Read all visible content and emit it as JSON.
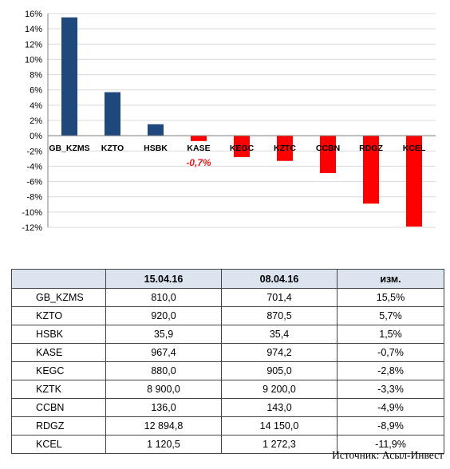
{
  "chart_data": {
    "type": "bar",
    "categories": [
      "GB_KZMS",
      "KZTO",
      "HSBK",
      "KASE",
      "KEGC",
      "KZTC",
      "CCBN",
      "RDGZ",
      "KCEL"
    ],
    "values": [
      15.5,
      5.7,
      1.5,
      -0.7,
      -2.8,
      -3.3,
      -4.9,
      -8.9,
      -11.9
    ],
    "ylim": [
      -12,
      16
    ],
    "yticks": [
      "16%",
      "14%",
      "12%",
      "10%",
      "8%",
      "6%",
      "4%",
      "2%",
      "0%",
      "-2%",
      "-4%",
      "-6%",
      "-8%",
      "-10%",
      "-12%"
    ],
    "grid": true,
    "annotation": {
      "category": "KASE",
      "text": "-0,7%"
    },
    "colors": {
      "positive": "#1f497d",
      "negative": "#ff0000",
      "annotation": "#e31c1c"
    }
  },
  "table": {
    "headers": [
      "",
      "15.04.16",
      "08.04.16",
      "изм."
    ],
    "rows": [
      [
        "GB_KZMS",
        "810,0",
        "701,4",
        "15,5%"
      ],
      [
        "KZTO",
        "920,0",
        "870,5",
        "5,7%"
      ],
      [
        "HSBK",
        "35,9",
        "35,4",
        "1,5%"
      ],
      [
        "KASE",
        "967,4",
        "974,2",
        "-0,7%"
      ],
      [
        "KEGC",
        "880,0",
        "905,0",
        "-2,8%"
      ],
      [
        "KZTK",
        "8 900,0",
        "9 200,0",
        "-3,3%"
      ],
      [
        "CCBN",
        "136,0",
        "143,0",
        "-4,9%"
      ],
      [
        "RDGZ",
        "12 894,8",
        "14 150,0",
        "-8,9%"
      ],
      [
        "KCEL",
        "1 120,5",
        "1 272,3",
        "-11,9%"
      ]
    ]
  },
  "source": "Источник: Асыл-Инвест"
}
